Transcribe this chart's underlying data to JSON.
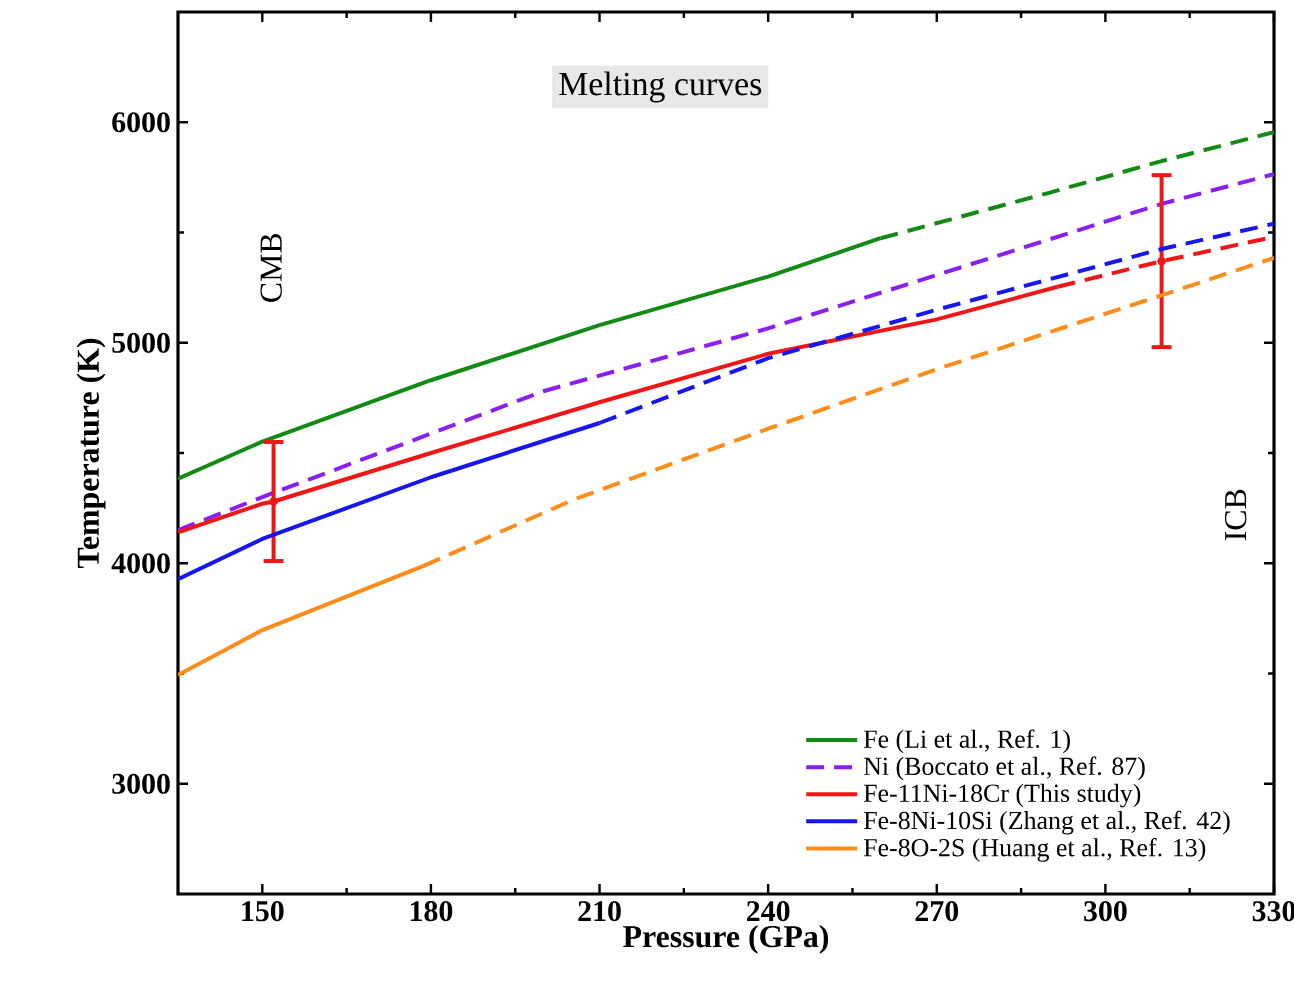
{
  "chart_data": {
    "type": "line",
    "title": "Melting curves",
    "xlabel": "Pressure (GPa)",
    "ylabel": "Temperature (K)",
    "xlim": [
      135,
      330
    ],
    "ylim": [
      2500,
      6500
    ],
    "xticks": [
      150,
      180,
      210,
      240,
      270,
      300,
      330
    ],
    "yticks": [
      3000,
      4000,
      5000,
      6000
    ],
    "grid": false,
    "legend": "bottom right",
    "marker": "none",
    "annotations": [
      "CMB",
      "ICB"
    ],
    "series": [
      {
        "name": "Fe (Li et al., Ref. 1)",
        "color": "#138a13",
        "line_style": "solid",
        "x": [
          135,
          150,
          180,
          210,
          240,
          260
        ],
        "values": [
          4383,
          4552,
          4830,
          5080,
          5300,
          5474
        ]
      },
      {
        "color": "#138a13",
        "line_style": "dashed",
        "x": [
          260,
          290,
          310,
          330
        ],
        "values": [
          5474,
          5680,
          5824,
          5955
        ]
      },
      {
        "name": "Ni (Boccato et al., Ref. 87)",
        "color": "#8b1ef0",
        "line_style": "dashed",
        "x": [
          135,
          150,
          200,
          240,
          310,
          330
        ],
        "values": [
          4150,
          4300,
          4780,
          5065,
          5630,
          5765
        ]
      },
      {
        "name": "Fe-11Ni-18Cr (This study)",
        "color": "#f01616",
        "line_style": "solid",
        "x": [
          135,
          150,
          152,
          180,
          210,
          240,
          270,
          291.5
        ],
        "values": [
          4140,
          4270,
          4280,
          4500,
          4730,
          4950,
          5106,
          5254
        ],
        "errors": [
          null,
          null,
          270,
          null,
          null,
          null,
          null,
          null
        ]
      },
      {
        "color": "#f01616",
        "line_style": "dashed",
        "x": [
          291.5,
          310,
          330
        ],
        "values": [
          5254,
          5370,
          5480
        ],
        "errors": [
          null,
          390,
          null
        ]
      },
      {
        "name": "Fe-8Ni-10Si (Zhang et al., Ref. 42)",
        "color": "#1616f0",
        "line_style": "solid",
        "x": [
          135,
          150,
          180,
          210
        ],
        "values": [
          3928,
          4110,
          4390,
          4636
        ]
      },
      {
        "color": "#1616f0",
        "line_style": "dashed",
        "x": [
          210,
          240,
          270,
          310,
          330
        ],
        "values": [
          4636,
          4930,
          5150,
          5425,
          5540
        ]
      },
      {
        "name": "Fe-8O-2S (Huang et al., Ref. 13)",
        "color": "#ff8c1a",
        "line_style": "solid",
        "x": [
          135,
          150,
          178.7
        ],
        "values": [
          3493,
          3697,
          3988
        ]
      },
      {
        "color": "#ff8c1a",
        "line_style": "dashed",
        "x": [
          178.7,
          205.4,
          240,
          270,
          310,
          330
        ],
        "values": [
          3988,
          4289,
          4610,
          4880,
          5215,
          5385
        ]
      }
    ]
  }
}
